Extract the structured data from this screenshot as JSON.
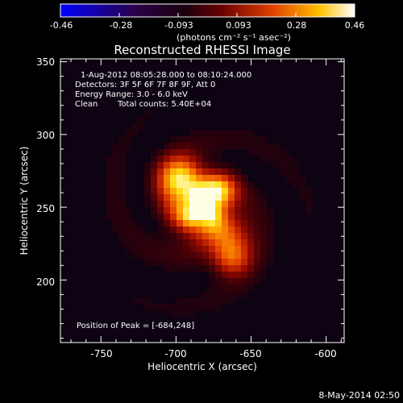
{
  "colorbar": {
    "ticks": [
      "-0.46",
      "-0.28",
      "-0.093",
      "0.093",
      "0.28",
      "0.46"
    ],
    "units": "(photons cm⁻² s⁻¹ asec⁻²)",
    "range": [
      -0.46,
      0.46
    ],
    "colormap": "blue-black-red-yellow-white"
  },
  "plot": {
    "title": "Reconstructed RHESSI Image",
    "xlabel": "Heliocentric X (arcsec)",
    "ylabel": "Heliocentric Y (arcsec)",
    "x_ticks": [
      "-750",
      "-700",
      "-650",
      "-600"
    ],
    "y_ticks": [
      "350",
      "300",
      "250",
      "200"
    ],
    "xlim": [
      -777,
      -588
    ],
    "ylim": [
      157,
      352
    ]
  },
  "annotations": {
    "time_range": "1-Aug-2012 08:05:28.000 to 08:10:24.000",
    "detectors": "Detectors: 3F 5F 6F 7F 8F 9F, Att 0",
    "energy": "Energy Range: 3.0 - 6.0 keV",
    "clean_label": "Clean",
    "total_counts": "Total counts: 5.40E+04",
    "peak": "Position of Peak = [-684,248]"
  },
  "footer": {
    "timestamp": "8-May-2014 02:50"
  },
  "sources": [
    {
      "x": -684,
      "y": 248,
      "peak": 1.0,
      "sigma": 12
    },
    {
      "x": -697,
      "y": 270,
      "peak": 0.8,
      "sigma": 10
    },
    {
      "x": -671,
      "y": 262,
      "peak": 0.55,
      "sigma": 8
    },
    {
      "x": -663,
      "y": 216,
      "peak": 0.55,
      "sigma": 9
    },
    {
      "x": -664,
      "y": 232,
      "peak": 0.35,
      "sigma": 9
    }
  ]
}
